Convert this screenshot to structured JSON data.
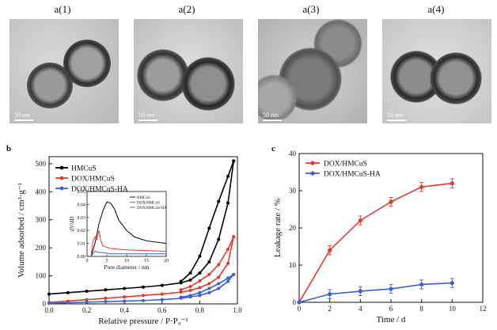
{
  "tem_panels": [
    {
      "title": "a(1)",
      "scale": "50 nm"
    },
    {
      "title": "a(2)",
      "scale": "50 nm"
    },
    {
      "title": "a(3)",
      "scale": "50 nm"
    },
    {
      "title": "a(4)",
      "scale": "50 nm"
    }
  ],
  "panel_labels": {
    "b": "b",
    "c": "c"
  },
  "colors": {
    "HMCuS": "#000000",
    "DOX/HMCuS": "#e8372c",
    "DOX/HMCuS-HA": "#3a5fd6"
  },
  "chart_data": [
    {
      "id": "b",
      "type": "line",
      "xlabel": "Relative pressure / P·P₀⁻¹",
      "ylabel": "Volume adsorbed / cm³·g⁻¹",
      "xlim": [
        0,
        1.0
      ],
      "ylim": [
        0,
        525
      ],
      "xticks": [
        "0.0",
        "0.2",
        "0.4",
        "0.6",
        "0.8",
        "1.0"
      ],
      "yticks": [
        "0",
        "100",
        "200",
        "300",
        "400",
        "500"
      ],
      "series": [
        {
          "name": "HMCuS",
          "adsorption": [
            [
              0,
              35
            ],
            [
              0.1,
              40
            ],
            [
              0.2,
              45
            ],
            [
              0.3,
              50
            ],
            [
              0.4,
              55
            ],
            [
              0.5,
              60
            ],
            [
              0.6,
              66
            ],
            [
              0.7,
              75
            ],
            [
              0.75,
              85
            ],
            [
              0.8,
              110
            ],
            [
              0.85,
              150
            ],
            [
              0.9,
              230
            ],
            [
              0.95,
              360
            ],
            [
              0.98,
              510
            ]
          ],
          "desorption": [
            [
              0.98,
              510
            ],
            [
              0.95,
              455
            ],
            [
              0.9,
              365
            ],
            [
              0.85,
              270
            ],
            [
              0.8,
              170
            ],
            [
              0.75,
              110
            ],
            [
              0.7,
              80
            ]
          ]
        },
        {
          "name": "DOX/HMCuS",
          "adsorption": [
            [
              0,
              5
            ],
            [
              0.1,
              10
            ],
            [
              0.2,
              15
            ],
            [
              0.3,
              20
            ],
            [
              0.4,
              25
            ],
            [
              0.5,
              30
            ],
            [
              0.6,
              35
            ],
            [
              0.7,
              42
            ],
            [
              0.75,
              48
            ],
            [
              0.8,
              58
            ],
            [
              0.85,
              72
            ],
            [
              0.9,
              95
            ],
            [
              0.95,
              145
            ],
            [
              0.98,
              240
            ]
          ],
          "desorption": [
            [
              0.98,
              240
            ],
            [
              0.95,
              195
            ],
            [
              0.9,
              140
            ],
            [
              0.85,
              105
            ],
            [
              0.8,
              82
            ],
            [
              0.75,
              62
            ],
            [
              0.7,
              50
            ]
          ]
        },
        {
          "name": "DOX/HMCuS-HA",
          "adsorption": [
            [
              0,
              2
            ],
            [
              0.1,
              4
            ],
            [
              0.2,
              6
            ],
            [
              0.3,
              8
            ],
            [
              0.4,
              10
            ],
            [
              0.5,
              12
            ],
            [
              0.6,
              15
            ],
            [
              0.7,
              20
            ],
            [
              0.75,
              25
            ],
            [
              0.8,
              30
            ],
            [
              0.85,
              40
            ],
            [
              0.9,
              55
            ],
            [
              0.95,
              80
            ],
            [
              0.98,
              105
            ]
          ],
          "desorption": [
            [
              0.98,
              105
            ],
            [
              0.95,
              92
            ],
            [
              0.9,
              72
            ],
            [
              0.85,
              55
            ],
            [
              0.8,
              40
            ],
            [
              0.75,
              30
            ],
            [
              0.7,
              24
            ]
          ]
        }
      ],
      "legend": [
        "HMCuS",
        "DOX/HMCuS",
        "DOX/HMCuS-HA"
      ],
      "inset": {
        "xlabel": "Pore diameter / nm",
        "ylabel": "dV/dD",
        "xlim": [
          0,
          20
        ],
        "ylim": [
          0,
          0.05
        ],
        "xticks": [
          "0",
          "5",
          "10",
          "15",
          "20"
        ],
        "yticks": [
          "0.00",
          "0.01",
          "0.02",
          "0.03",
          "0.04",
          "0.05"
        ],
        "legend": [
          "HMCuS",
          "DOX/HMCuS",
          "DOX/HMCuS-HA"
        ],
        "series": [
          {
            "name": "HMCuS",
            "points": [
              [
                1,
                0
              ],
              [
                2,
                0.01
              ],
              [
                3,
                0.025
              ],
              [
                4,
                0.035
              ],
              [
                5,
                0.042
              ],
              [
                6,
                0.041
              ],
              [
                7,
                0.036
              ],
              [
                8,
                0.028
              ],
              [
                10,
                0.02
              ],
              [
                12,
                0.015
              ],
              [
                15,
                0.012
              ],
              [
                20,
                0.01
              ]
            ]
          },
          {
            "name": "DOX/HMCuS",
            "points": [
              [
                1,
                0
              ],
              [
                1.5,
                0.012
              ],
              [
                2,
                0.015
              ],
              [
                2.5,
                0.013
              ],
              [
                3,
                0.02
              ],
              [
                3.5,
                0.012
              ],
              [
                4,
                0.008
              ],
              [
                6,
                0.006
              ],
              [
                10,
                0.005
              ],
              [
                20,
                0.004
              ]
            ]
          },
          {
            "name": "DOX/HMCuS-HA",
            "points": [
              [
                1,
                0
              ],
              [
                1.5,
                0.002
              ],
              [
                2,
                0.004
              ],
              [
                3,
                0.003
              ],
              [
                4,
                0.003
              ],
              [
                6,
                0.002
              ],
              [
                10,
                0.002
              ],
              [
                20,
                0.002
              ]
            ]
          }
        ]
      }
    },
    {
      "id": "c",
      "type": "line",
      "xlabel": "Time / d",
      "ylabel": "Leakage rate / %",
      "xlim": [
        0,
        12
      ],
      "ylim": [
        0,
        40
      ],
      "xticks": [
        "0",
        "2",
        "4",
        "6",
        "8",
        "10",
        "12"
      ],
      "yticks": [
        "0",
        "10",
        "20",
        "30",
        "40"
      ],
      "legend": [
        "DOX/HMCuS",
        "DOX/HMCuS-HA"
      ],
      "series": [
        {
          "name": "DOX/HMCuS",
          "x": [
            0,
            2,
            4,
            6,
            8,
            10
          ],
          "y": [
            0,
            14,
            22,
            27,
            31,
            32
          ]
        },
        {
          "name": "DOX/HMCuS-HA",
          "x": [
            0,
            2,
            4,
            6,
            8,
            10
          ],
          "y": [
            0,
            2.2,
            3,
            3.6,
            4.8,
            5.2
          ]
        }
      ]
    }
  ]
}
